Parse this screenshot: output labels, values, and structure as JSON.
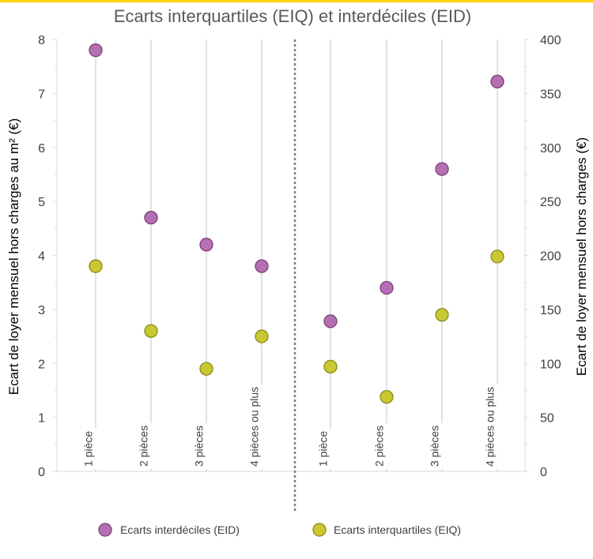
{
  "header": {
    "accent_color": "#ffd200"
  },
  "chart_data": {
    "type": "scatter",
    "title": "Ecarts interquartiles (EIQ) et interdéciles (EID)",
    "ylabel_left": "Ecart de loyer mensuel hors charges au m² (€)",
    "ylabel_right": "Ecart de loyer mensuel hors charges (€)",
    "ylim_left": [
      0,
      8
    ],
    "ylim_right": [
      0,
      400
    ],
    "yticks_left": [
      "0",
      "1",
      "2",
      "3",
      "4",
      "5",
      "6",
      "7",
      "8"
    ],
    "yticks_right": [
      "0",
      "50",
      "100",
      "150",
      "200",
      "250",
      "300",
      "350",
      "400"
    ],
    "categories": [
      "1 pièce",
      "2 pièces",
      "3 pièces",
      "4 pièces ou plus",
      "1 pièce",
      "2 pièces",
      "3 pièces",
      "4 pièces ou plus"
    ],
    "series": [
      {
        "name": "Ecarts interdéciles (EID)",
        "color": "#b56fb3",
        "stroke": "#7a3f78",
        "left_axis_values": [
          7.8,
          4.7,
          4.2,
          3.8
        ],
        "right_axis_values": [
          139,
          170,
          280,
          361
        ]
      },
      {
        "name": "Ecarts interquartiles (EIQ)",
        "color": "#c8c832",
        "stroke": "#8a8a1a",
        "left_axis_values": [
          3.8,
          2.6,
          1.9,
          2.5
        ],
        "right_axis_values": [
          97,
          69,
          145,
          199
        ]
      }
    ],
    "grid": "vertical",
    "legend_position": "bottom"
  }
}
